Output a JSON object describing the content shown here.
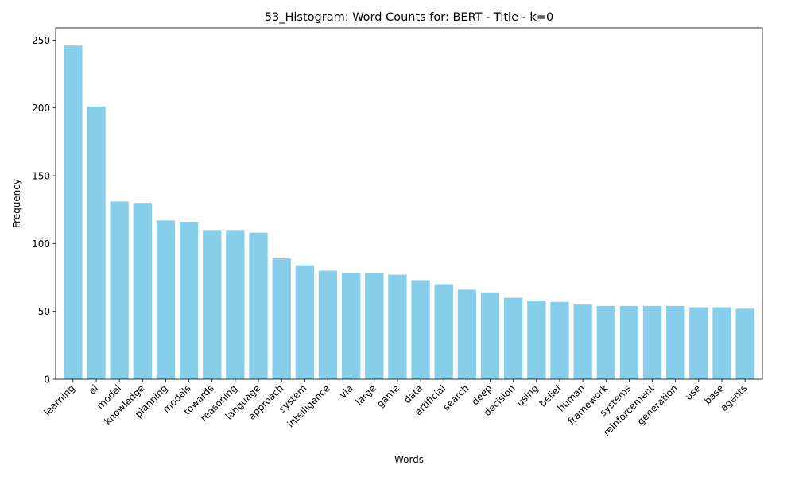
{
  "chart_data": {
    "type": "bar",
    "title": "53_Histogram: Word Counts for: BERT - Title - k=0",
    "xlabel": "Words",
    "ylabel": "Frequency",
    "ylim": [
      0,
      259
    ],
    "yticks": [
      0,
      50,
      100,
      150,
      200,
      250
    ],
    "bar_color": "#87ceeb",
    "grid": false,
    "categories": [
      "learning",
      "ai",
      "model",
      "knowledge",
      "planning",
      "models",
      "towards",
      "reasoning",
      "language",
      "approach",
      "system",
      "intelligence",
      "via",
      "large",
      "game",
      "data",
      "artificial",
      "search",
      "deep",
      "decision",
      "using",
      "belief",
      "human",
      "framework",
      "systems",
      "reinforcement",
      "generation",
      "use",
      "base",
      "agents"
    ],
    "values": [
      246,
      201,
      131,
      130,
      117,
      116,
      110,
      110,
      108,
      89,
      84,
      80,
      78,
      78,
      77,
      73,
      70,
      66,
      64,
      60,
      58,
      57,
      55,
      54,
      54,
      54,
      54,
      53,
      53,
      52
    ]
  }
}
